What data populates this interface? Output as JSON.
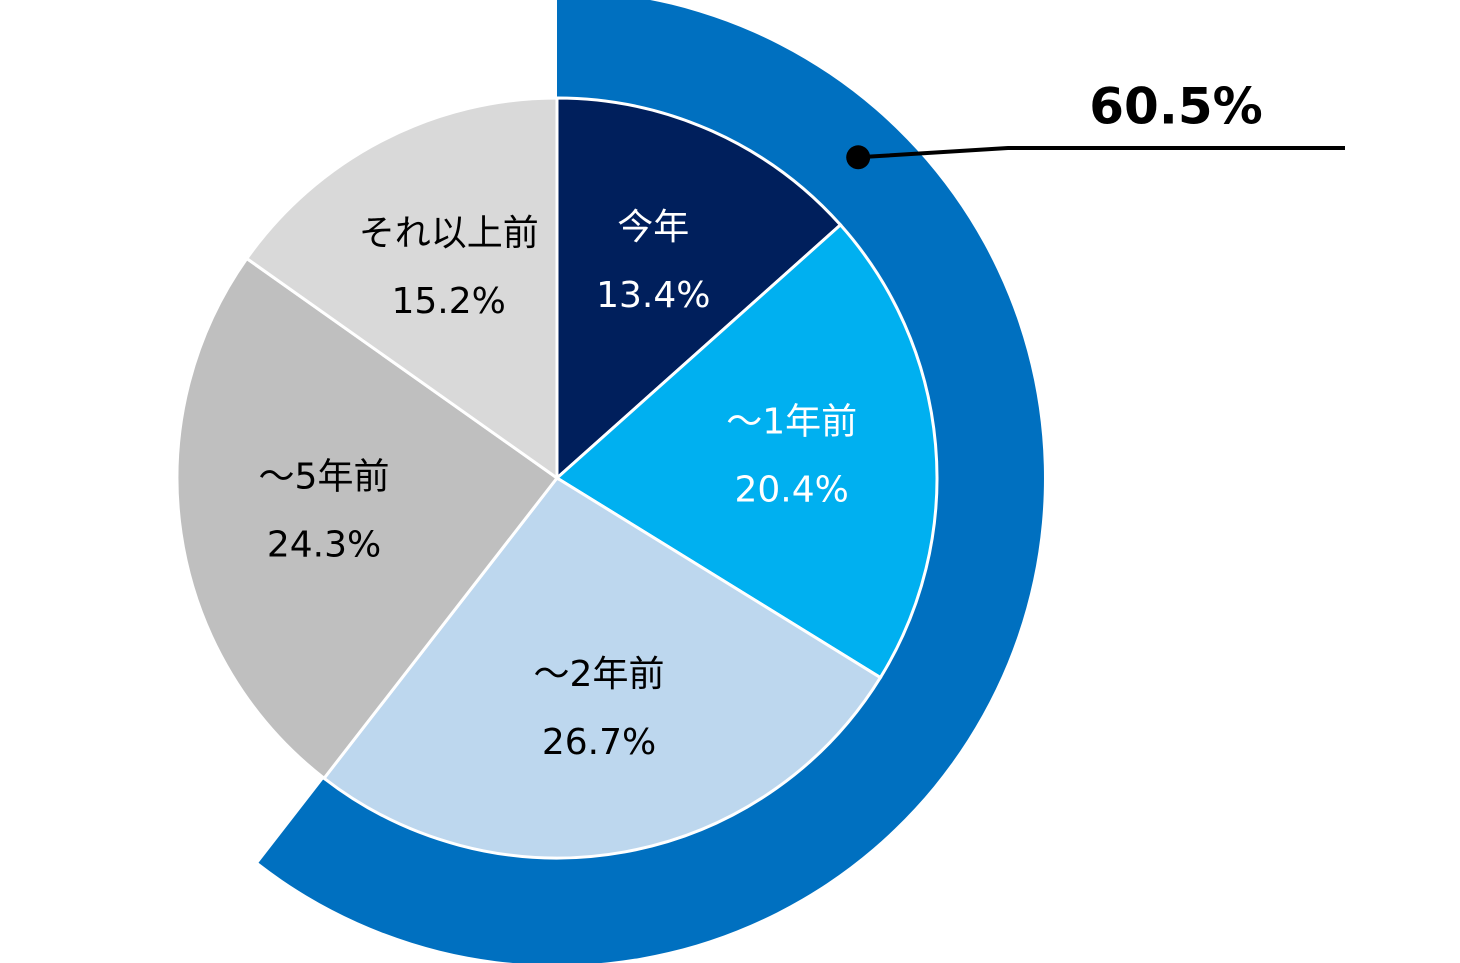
{
  "chart_data": {
    "type": "pie",
    "slices": [
      {
        "label": "今年",
        "value": 13.4,
        "value_text": "13.4%",
        "color": "#001F5C",
        "text_color": "#ffffff"
      },
      {
        "label": "～1年前",
        "value": 20.4,
        "value_text": "20.4%",
        "color": "#00B0F0",
        "text_color": "#ffffff"
      },
      {
        "label": "～2年前",
        "value": 26.7,
        "value_text": "26.7%",
        "color": "#BDD7EE",
        "text_color": "#000000"
      },
      {
        "label": "～5年前",
        "value": 24.3,
        "value_text": "24.3%",
        "color": "#BFBFBF",
        "text_color": "#000000"
      },
      {
        "label": "それ以上前",
        "value": 15.2,
        "value_text": "15.2%",
        "color": "#D9D9D9",
        "text_color": "#000000"
      }
    ],
    "start": "12 o'clock",
    "direction": "clockwise",
    "highlight_ring": {
      "covers_slices": [
        "今年",
        "～1年前",
        "～2年前"
      ],
      "color": "#0070C0",
      "value": 60.5,
      "value_text": "60.5%"
    },
    "callout_line_color": "#000000",
    "legend": "none"
  }
}
